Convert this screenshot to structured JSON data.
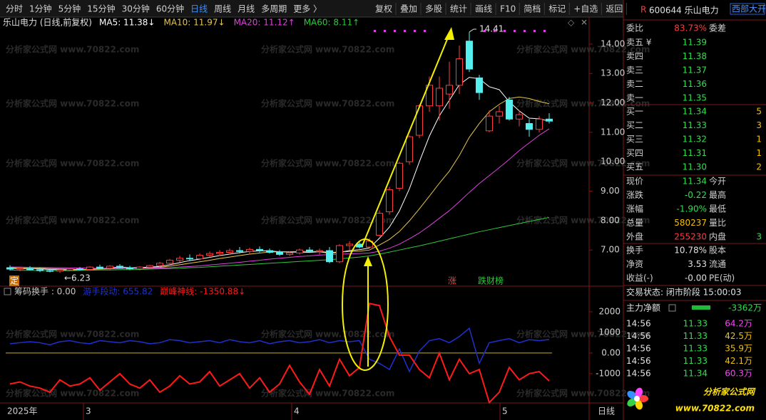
{
  "toolbar": {
    "periods": [
      "分时",
      "1分钟",
      "5分钟",
      "15分钟",
      "30分钟",
      "60分钟",
      "日线",
      "周线",
      "月线",
      "多周期",
      "更多 〉"
    ],
    "tools": [
      "复权",
      "叠加",
      "多股",
      "统计",
      "画线",
      "F10",
      "简档",
      "标记",
      "+自选",
      "返回"
    ]
  },
  "watermark": "分析家公式网 www.70822.com",
  "chart": {
    "title": "乐山电力 (日线,前复权)",
    "ma_legend": [
      {
        "label": "MA5: 11.38↓",
        "color": "#ffffff"
      },
      {
        "label": "MA10: 11.97↓",
        "color": "#e8c547"
      },
      {
        "label": "MA20: 11.12↑",
        "color": "#e040e0"
      },
      {
        "label": "MA60: 8.11↑",
        "color": "#2ec83a"
      }
    ],
    "up_color": "#ff3b3b",
    "down_color": "#54f0f0",
    "ylim": [
      5.94,
      14.53
    ],
    "yticks": [
      {
        "value": 7,
        "label": "7.00"
      },
      {
        "value": 8,
        "label": "8.00"
      },
      {
        "value": 9,
        "label": "9.00"
      },
      {
        "value": 10,
        "label": "10.00"
      },
      {
        "value": 11,
        "label": "11.00"
      },
      {
        "value": 12,
        "label": "12.00"
      },
      {
        "value": 13,
        "label": "13.00"
      },
      {
        "value": 14,
        "label": "14.00"
      }
    ],
    "open": [
      6.4,
      6.35,
      6.38,
      6.33,
      6.3,
      6.28,
      6.32,
      6.36,
      6.34,
      6.42,
      6.38,
      6.45,
      6.4,
      6.36,
      6.42,
      6.47,
      6.55,
      6.65,
      6.72,
      6.7,
      6.82,
      6.88,
      6.92,
      6.98,
      6.95,
      7.02,
      6.98,
      6.92,
      6.85,
      6.9,
      7.0,
      6.95,
      6.98,
      6.6,
      7.15,
      7.2,
      7.1,
      7.5,
      8.3,
      9.1,
      10.0,
      10.9,
      11.9,
      11.9,
      12.3,
      12.6,
      14.1,
      12.85,
      11.05,
      11.55,
      12.1,
      11.45,
      11.3,
      11.1,
      11.45
    ],
    "high": [
      6.48,
      6.42,
      6.45,
      6.4,
      6.36,
      6.35,
      6.4,
      6.42,
      6.45,
      6.5,
      6.48,
      6.52,
      6.46,
      6.45,
      6.5,
      6.6,
      6.7,
      6.8,
      6.85,
      6.88,
      6.95,
      7.0,
      7.05,
      7.1,
      7.08,
      7.12,
      7.05,
      7.0,
      6.95,
      7.05,
      7.1,
      7.05,
      7.1,
      7.2,
      7.3,
      7.3,
      7.4,
      8.35,
      9.15,
      10.0,
      10.9,
      11.95,
      12.9,
      12.9,
      13.4,
      13.95,
      14.41,
      12.95,
      11.75,
      11.9,
      12.2,
      11.75,
      11.45,
      11.55,
      11.65
    ],
    "low": [
      6.3,
      6.28,
      6.3,
      6.25,
      6.24,
      6.23,
      6.28,
      6.3,
      6.3,
      6.35,
      6.33,
      6.38,
      6.32,
      6.3,
      6.38,
      6.42,
      6.5,
      6.58,
      6.62,
      6.65,
      6.75,
      6.8,
      6.85,
      6.88,
      6.85,
      6.92,
      6.88,
      6.8,
      6.8,
      6.85,
      6.9,
      6.85,
      6.55,
      6.55,
      7.0,
      7.05,
      7.05,
      7.45,
      8.2,
      9.0,
      9.9,
      10.8,
      11.7,
      11.4,
      11.8,
      12.3,
      13.05,
      12.1,
      11.0,
      11.3,
      11.4,
      11.2,
      10.85,
      11.0,
      11.3
    ],
    "close": [
      6.35,
      6.38,
      6.33,
      6.3,
      6.28,
      6.32,
      6.36,
      6.34,
      6.42,
      6.38,
      6.45,
      6.4,
      6.36,
      6.42,
      6.47,
      6.55,
      6.65,
      6.72,
      6.7,
      6.82,
      6.88,
      6.92,
      6.98,
      6.95,
      7.02,
      6.98,
      6.92,
      6.85,
      6.9,
      7.0,
      6.95,
      6.98,
      6.6,
      7.15,
      7.2,
      7.1,
      7.3,
      8.25,
      9.05,
      9.95,
      10.85,
      11.9,
      12.6,
      12.5,
      12.6,
      13.5,
      13.15,
      12.35,
      11.55,
      11.7,
      11.45,
      11.6,
      11.1,
      11.45,
      11.38
    ],
    "ma": [
      [
        6.38,
        6.37,
        6.37,
        6.36,
        6.34,
        6.33,
        6.32,
        6.33,
        6.34,
        6.36,
        6.39,
        6.42,
        6.4,
        6.4,
        6.42,
        6.44,
        6.5,
        6.57,
        6.64,
        6.69,
        6.75,
        6.81,
        6.86,
        6.91,
        6.95,
        6.97,
        6.97,
        6.94,
        6.93,
        6.93,
        6.92,
        6.94,
        6.89,
        6.92,
        6.98,
        7.01,
        7.07,
        7.4,
        7.78,
        8.33,
        9.08,
        10.0,
        10.87,
        11.56,
        12.09,
        12.62,
        12.87,
        12.82,
        12.55,
        12.45,
        12.04,
        11.73,
        11.48,
        11.46,
        11.38
      ],
      [
        6.4,
        6.39,
        6.38,
        6.38,
        6.37,
        6.36,
        6.35,
        6.34,
        6.34,
        6.35,
        6.36,
        6.37,
        6.37,
        6.38,
        6.39,
        6.41,
        6.45,
        6.5,
        6.55,
        6.6,
        6.65,
        6.71,
        6.76,
        6.81,
        6.86,
        6.9,
        6.93,
        6.94,
        6.94,
        6.95,
        6.95,
        6.95,
        6.92,
        6.93,
        6.95,
        6.96,
        7.0,
        7.17,
        7.36,
        7.63,
        7.99,
        8.4,
        8.83,
        9.27,
        9.68,
        10.21,
        10.83,
        11.3,
        11.7,
        11.95,
        12.15,
        12.2,
        12.15,
        12.05,
        11.97
      ],
      [
        6.42,
        6.42,
        6.41,
        6.41,
        6.4,
        6.4,
        6.39,
        6.39,
        6.38,
        6.38,
        6.38,
        6.38,
        6.38,
        6.38,
        6.38,
        6.39,
        6.4,
        6.42,
        6.44,
        6.46,
        6.49,
        6.52,
        6.55,
        6.58,
        6.62,
        6.65,
        6.69,
        6.72,
        6.75,
        6.78,
        6.8,
        6.83,
        6.84,
        6.86,
        6.87,
        6.88,
        6.9,
        6.96,
        7.06,
        7.2,
        7.38,
        7.58,
        7.82,
        8.08,
        8.34,
        8.64,
        8.96,
        9.26,
        9.53,
        9.8,
        10.08,
        10.38,
        10.64,
        10.9,
        11.12
      ],
      [
        6.32,
        6.31,
        6.31,
        6.3,
        6.3,
        6.3,
        6.3,
        6.31,
        6.31,
        6.32,
        6.32,
        6.33,
        6.33,
        6.34,
        6.35,
        6.36,
        6.37,
        6.38,
        6.4,
        6.41,
        6.43,
        6.45,
        6.47,
        6.49,
        6.51,
        6.53,
        6.55,
        6.57,
        6.59,
        6.61,
        6.63,
        6.65,
        6.67,
        6.7,
        6.73,
        6.76,
        6.8,
        6.86,
        6.93,
        7.0,
        7.07,
        7.14,
        7.22,
        7.3,
        7.38,
        7.46,
        7.54,
        7.62,
        7.69,
        7.76,
        7.83,
        7.9,
        7.97,
        8.04,
        8.11
      ]
    ],
    "annotations": {
      "high": "14.41",
      "low": "←6.23",
      "rise": "涨",
      "fall": "跌财榜",
      "fix": "定"
    },
    "x_labels": [
      "2025年",
      "3",
      "4",
      "5"
    ],
    "period": "日线"
  },
  "indicator": {
    "ylim": [
      -2280,
      2620
    ],
    "yticks": [
      2000,
      1000,
      {
        "value": 0,
        "label": "0.00"
      },
      -1000
    ],
    "series": [
      {
        "name": "筹码换手 : 0.00",
        "color": "#c8b400",
        "level": 0
      },
      {
        "name": "游手段动: 655.82",
        "color": "#2030d0",
        "values": [
          450,
          500,
          550,
          500,
          400,
          550,
          600,
          500,
          450,
          600,
          550,
          500,
          600,
          550,
          450,
          500,
          650,
          600,
          500,
          550,
          600,
          500,
          650,
          550,
          500,
          600,
          450,
          550,
          600,
          500,
          550,
          650,
          500,
          600,
          550,
          600,
          -300,
          -500,
          -800,
          200,
          -900,
          100,
          600,
          700,
          500,
          800,
          1200,
          -500,
          500,
          600,
          700,
          500,
          650,
          600,
          655.82
        ]
      },
      {
        "name": "巅峰神线: -1350.88↓",
        "color": "#ff1a1a",
        "values": [
          -1500,
          -1400,
          -1600,
          -1700,
          -1900,
          -1300,
          -1600,
          -1500,
          -1200,
          -1800,
          -1400,
          -1000,
          -1500,
          -1700,
          -1300,
          -1900,
          -1600,
          -1100,
          -1500,
          -1400,
          -900,
          -1600,
          -1300,
          -1000,
          -1700,
          -1200,
          -1900,
          -1500,
          -600,
          -1400,
          -2000,
          -800,
          -1600,
          -300,
          -1100,
          -700,
          2400,
          2300,
          800,
          -100,
          -100,
          -800,
          -1200,
          0,
          -1300,
          -300,
          -1000,
          -800,
          -2400,
          -1900,
          -700,
          -1300,
          -1000,
          -900,
          -1350.88
        ]
      }
    ]
  },
  "quote": {
    "badge": "R",
    "code": "600644 乐山电力",
    "tag": "西部大开",
    "ratio": {
      "label": "委比",
      "value": "83.73%",
      "label2": "委差"
    },
    "asks": [
      {
        "label": "卖五 ¥",
        "price": "11.39"
      },
      {
        "label": "卖四",
        "price": "11.38"
      },
      {
        "label": "卖三",
        "price": "11.37"
      },
      {
        "label": "卖二",
        "price": "11.36"
      },
      {
        "label": "卖一",
        "price": "11.35"
      }
    ],
    "bids": [
      {
        "label": "买一",
        "price": "11.34",
        "vol": "5"
      },
      {
        "label": "买二",
        "price": "11.33",
        "vol": "3"
      },
      {
        "label": "买三",
        "price": "11.32",
        "vol": "1"
      },
      {
        "label": "买四",
        "price": "11.31",
        "vol": "1"
      },
      {
        "label": "买五",
        "price": "11.30",
        "vol": "2"
      }
    ],
    "stats": [
      {
        "label": "现价",
        "value": "11.34",
        "label2": "今开"
      },
      {
        "label": "涨跌",
        "value": "-0.22",
        "label2": "最高"
      },
      {
        "label": "涨幅",
        "value": "-1.90%",
        "label2": "最低"
      },
      {
        "label": "总量",
        "value": "580237",
        "label2": "量比"
      },
      {
        "label": "外盘",
        "value": "255230",
        "label2": "内盘",
        "value2": "3"
      }
    ],
    "stats2": [
      {
        "label": "换手",
        "value": "10.78%",
        "label2": "股本"
      },
      {
        "label": "净资",
        "value": "3.53",
        "label2": "流通"
      },
      {
        "label": "收益(-)",
        "value": "-0.00",
        "label2": "PE(动)"
      }
    ],
    "status": "交易状态: 闭市阶段 15:00:03",
    "flow": {
      "label": "主力净额",
      "value": "-3362万"
    },
    "trades": [
      {
        "time": "14:56",
        "price": "11.33",
        "vol": "64.2万"
      },
      {
        "time": "14:56",
        "price": "11.33",
        "vol": "42.5万"
      },
      {
        "time": "14:56",
        "price": "11.33",
        "vol": "35.9万"
      },
      {
        "time": "14:56",
        "price": "11.33",
        "vol": "42.1万"
      },
      {
        "time": "14:56",
        "price": "11.34",
        "vol": "60.3万"
      }
    ],
    "logo": {
      "name": "分析家公式网",
      "url": "www.70822.com"
    }
  }
}
